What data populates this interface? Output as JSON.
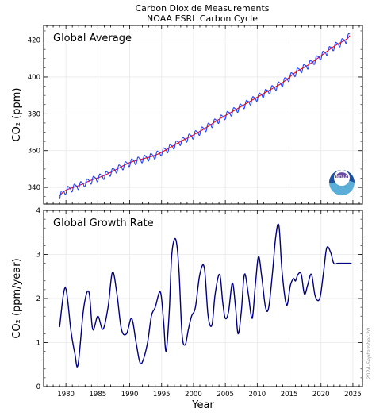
{
  "title_line1": "Carbon Dioxide Measurements",
  "title_line2": "NOAA ESRL Carbon Cycle",
  "date_stamp": "2024-September-20",
  "logo_text": "NOAA",
  "colors": {
    "trend": "#ff0000",
    "seasonal": "#1f3fff",
    "growth": "#000080",
    "grid": "#e8e8e8"
  },
  "chart_data": [
    {
      "type": "line",
      "panel_label": "Global Average",
      "ylabel": "CO₂ (ppm)",
      "ylim": [
        331,
        428
      ],
      "yticks": [
        340,
        360,
        380,
        400,
        420
      ],
      "xlim": [
        1976.5,
        2026.5
      ],
      "grid": true,
      "series": [
        {
          "role": "trend",
          "x": [
            1979,
            1980,
            1982,
            1984,
            1986,
            1988,
            1990,
            1992,
            1994,
            1996,
            1998,
            2000,
            2002,
            2004,
            2006,
            2008,
            2010,
            2012,
            2014,
            2016,
            2018,
            2020,
            2022,
            2024,
            2024.5
          ],
          "y": [
            335.5,
            338.5,
            341.0,
            344.0,
            346.5,
            350.0,
            353.5,
            355.5,
            357.5,
            361.0,
            365.0,
            368.5,
            372.5,
            377.0,
            381.0,
            385.0,
            389.0,
            393.0,
            397.0,
            402.5,
            406.5,
            411.5,
            416.5,
            420.5,
            422.5
          ]
        },
        {
          "role": "seasonal",
          "x": [
            1979,
            1980,
            1982,
            1984,
            1986,
            1988,
            1990,
            1992,
            1994,
            1996,
            1998,
            2000,
            2002,
            2004,
            2006,
            2008,
            2010,
            2012,
            2014,
            2016,
            2018,
            2020,
            2022,
            2024,
            2024.5
          ],
          "y": [
            336.5,
            339.5,
            342.0,
            345.0,
            347.5,
            351.0,
            354.5,
            356.5,
            358.5,
            362.0,
            366.0,
            369.5,
            373.5,
            378.0,
            382.0,
            386.0,
            390.0,
            394.0,
            398.0,
            403.5,
            407.5,
            412.5,
            417.5,
            421.5,
            423.5
          ],
          "seasonal_amplitude": 1.7
        }
      ]
    },
    {
      "type": "line",
      "panel_label": "Global Growth Rate",
      "ylabel": "CO₂ (ppm/year)",
      "xlabel": "Year",
      "ylim": [
        0,
        4
      ],
      "yticks": [
        0,
        1,
        2,
        3,
        4
      ],
      "xlim": [
        1976.5,
        2026.5
      ],
      "xticks": [
        1980,
        1985,
        1990,
        1995,
        2000,
        2005,
        2010,
        2015,
        2020,
        2025
      ],
      "grid": true,
      "series": [
        {
          "role": "growth",
          "x": [
            1979.0,
            1979.9,
            1980.8,
            1981.4,
            1981.9,
            1982.8,
            1983.6,
            1984.2,
            1985.0,
            1985.8,
            1986.6,
            1987.3,
            1988.0,
            1988.7,
            1989.5,
            1990.3,
            1991.0,
            1991.6,
            1992.1,
            1992.8,
            1993.4,
            1994.0,
            1994.8,
            1995.3,
            1995.7,
            1996.2,
            1996.6,
            1997.2,
            1997.7,
            1998.2,
            1998.7,
            1999.2,
            1999.7,
            2000.3,
            2001.0,
            2001.7,
            2002.3,
            2002.9,
            2003.4,
            2004.1,
            2004.6,
            2005.0,
            2005.5,
            2006.1,
            2006.6,
            2007.0,
            2007.5,
            2008.0,
            2008.6,
            2009.2,
            2009.7,
            2010.2,
            2010.7,
            2011.3,
            2011.8,
            2012.4,
            2012.9,
            2013.4,
            2013.9,
            2014.6,
            2015.2,
            2015.7,
            2016.0,
            2016.4,
            2016.9,
            2017.4,
            2017.9,
            2018.5,
            2019.1,
            2019.8,
            2020.4,
            2020.9,
            2021.5,
            2022.0,
            2022.6,
            2023.1,
            2023.5,
            2024.0,
            2024.5,
            2024.8
          ],
          "y": [
            1.35,
            2.25,
            1.25,
            0.75,
            0.5,
            1.8,
            2.15,
            1.3,
            1.6,
            1.3,
            1.8,
            2.6,
            2.1,
            1.3,
            1.2,
            1.55,
            1.0,
            0.55,
            0.6,
            1.0,
            1.6,
            1.8,
            2.15,
            1.5,
            0.8,
            1.7,
            3.0,
            3.35,
            2.7,
            1.2,
            0.95,
            1.3,
            1.6,
            1.8,
            2.55,
            2.7,
            1.6,
            1.4,
            2.1,
            2.55,
            1.9,
            1.55,
            1.7,
            2.35,
            1.8,
            1.2,
            1.7,
            2.55,
            2.1,
            1.55,
            2.3,
            2.95,
            2.5,
            1.8,
            1.8,
            2.6,
            3.4,
            3.65,
            2.6,
            1.85,
            2.3,
            2.45,
            2.4,
            2.55,
            2.55,
            2.1,
            2.3,
            2.55,
            2.05,
            2.0,
            2.6,
            3.15,
            3.05,
            2.8,
            2.8,
            2.8,
            2.8,
            2.8,
            2.8,
            2.8
          ]
        }
      ]
    }
  ]
}
